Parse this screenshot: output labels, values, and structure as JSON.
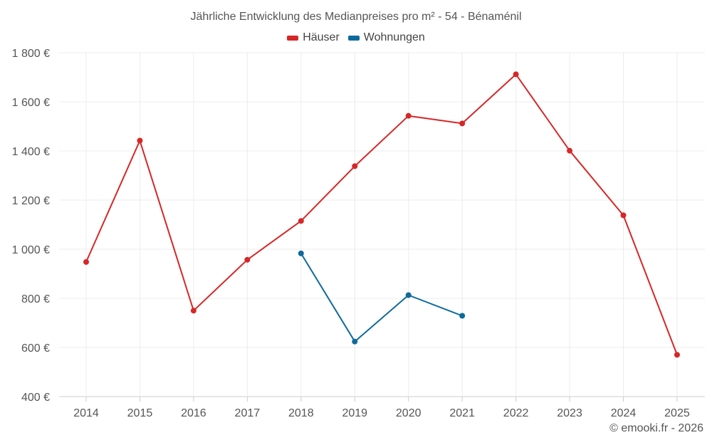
{
  "chart_data": {
    "type": "line",
    "title": "Jährliche Entwicklung des Medianpreises pro m² - 54 - Bénaménil",
    "categories": [
      "2014",
      "2015",
      "2016",
      "2017",
      "2018",
      "2019",
      "2020",
      "2021",
      "2022",
      "2023",
      "2024",
      "2025"
    ],
    "y_ticks": [
      "400 €",
      "600 €",
      "800 €",
      "1 000 €",
      "1 200 €",
      "1 400 €",
      "1 600 €",
      "1 800 €"
    ],
    "ylim": [
      400,
      1800
    ],
    "y_tick_values": [
      400,
      600,
      800,
      1000,
      1200,
      1400,
      1600,
      1800
    ],
    "xlabel": "",
    "ylabel": "",
    "legend_position": "top-center",
    "series": [
      {
        "name": "Häuser",
        "color": "#d62728",
        "values": [
          948,
          1442,
          750,
          957,
          1115,
          1338,
          1543,
          1512,
          1712,
          1401,
          1138,
          570
        ]
      },
      {
        "name": "Wohnungen",
        "color": "#0f6a9c",
        "values": [
          null,
          null,
          null,
          null,
          983,
          624,
          813,
          729,
          null,
          null,
          null,
          null
        ]
      }
    ],
    "credit": "© emooki.fr - 2026"
  }
}
